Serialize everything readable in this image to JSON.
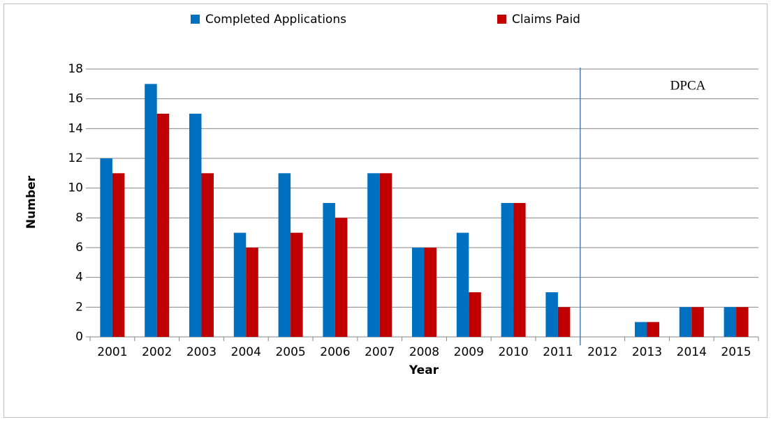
{
  "chart_data": {
    "type": "bar",
    "categories": [
      "2001",
      "2002",
      "2003",
      "2004",
      "2005",
      "2006",
      "2007",
      "2008",
      "2009",
      "2010",
      "2011",
      "2012",
      "2013",
      "2014",
      "2015"
    ],
    "series": [
      {
        "name": "Completed Applications",
        "color": "#0070c0",
        "values": [
          12,
          17,
          15,
          7,
          11,
          9,
          11,
          6,
          7,
          9,
          3,
          0,
          1,
          2,
          2
        ]
      },
      {
        "name": "Claims Paid",
        "color": "#c00000",
        "values": [
          11,
          15,
          11,
          6,
          7,
          8,
          11,
          6,
          3,
          9,
          2,
          0,
          1,
          2,
          2
        ]
      }
    ],
    "ylim": [
      0,
      18
    ],
    "yticks": [
      0,
      2,
      4,
      6,
      8,
      10,
      12,
      14,
      16,
      18
    ],
    "grid": true,
    "xlabel": "Year",
    "ylabel": "Number",
    "annotation": "DPCA"
  }
}
